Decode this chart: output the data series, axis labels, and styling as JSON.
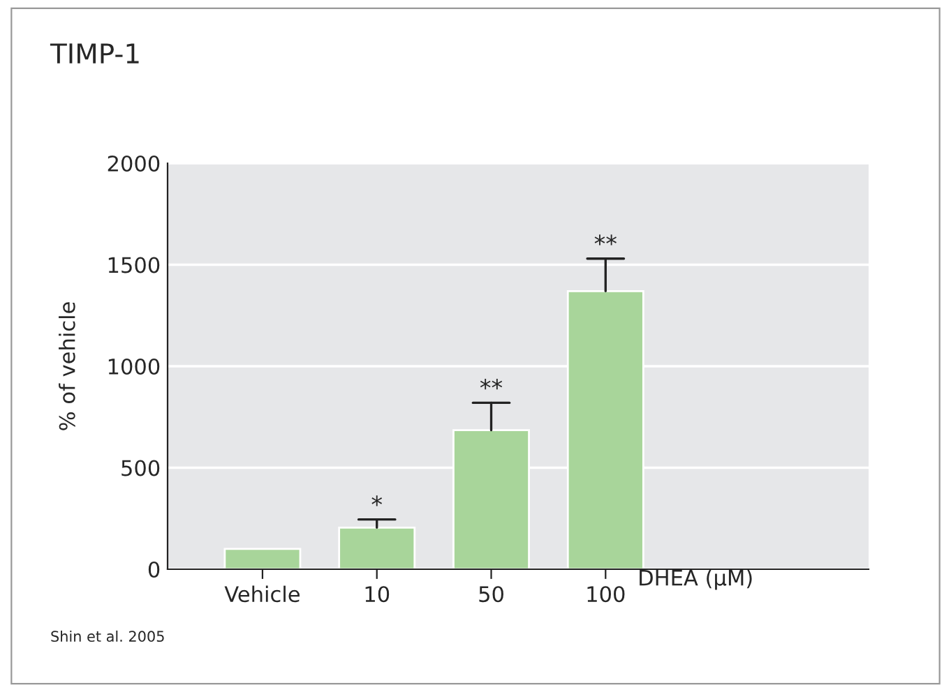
{
  "chart_data": {
    "type": "bar",
    "title": "TIMP-1",
    "ylabel": "% of vehicle",
    "xlabel": "DHEA (μM)",
    "categories": [
      "Vehicle",
      "10",
      "50",
      "100"
    ],
    "values": [
      100,
      205,
      685,
      1370
    ],
    "errors": [
      null,
      [
        205,
        245
      ],
      [
        685,
        820
      ],
      [
        1370,
        1530
      ]
    ],
    "color": "#a8d59a",
    "ylim": [
      0,
      2000
    ],
    "yticks": [
      0,
      500,
      1000,
      1500,
      2000
    ],
    "grid": "y",
    "annotations": [
      {
        "text": "*",
        "x": "10",
        "y": 245
      },
      {
        "text": "**",
        "x": "50",
        "y": 820
      },
      {
        "text": "**",
        "x": "100",
        "y": 1530
      },
      "Shin et al. 2005"
    ]
  }
}
